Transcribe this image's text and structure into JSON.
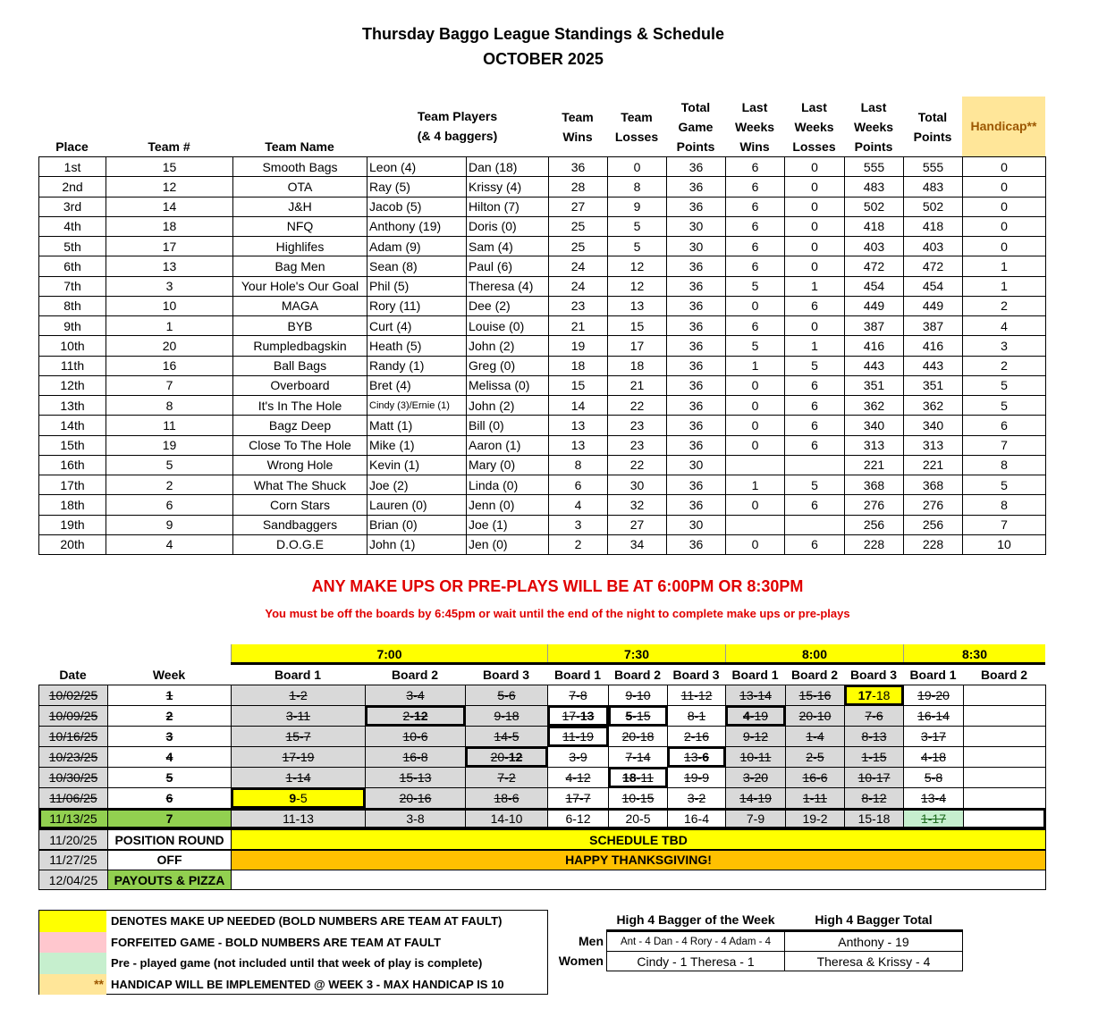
{
  "title": "Thursday Baggo League Standings & Schedule",
  "subtitle": "OCTOBER 2025",
  "colors": {
    "yellow": "#ffff00",
    "gray": "#d9d9d9",
    "green": "#92d050",
    "pre_played": "#c6efce",
    "handicap": "#ffe699",
    "orange": "#ffc000",
    "forfeit": "#ffc7ce",
    "red": "#e00000"
  },
  "standings": {
    "headers": [
      "Place",
      "Team #",
      "Team Name",
      "Team Players\n(& 4 baggers)",
      "Team\nWins",
      "Team\nLosses",
      "Total\nGame\nPoints",
      "Last\nWeeks\nWins",
      "Last\nWeeks\nLosses",
      "Last\nWeeks\nPoints",
      "Total\nPoints",
      "Handicap**"
    ],
    "rows": [
      [
        "1st",
        "15",
        "Smooth Bags",
        "Leon (4)",
        "Dan (18)",
        "36",
        "0",
        "36",
        "6",
        "0",
        "555",
        "555",
        "0"
      ],
      [
        "2nd",
        "12",
        "OTA",
        "Ray (5)",
        "Krissy (4)",
        "28",
        "8",
        "36",
        "6",
        "0",
        "483",
        "483",
        "0"
      ],
      [
        "3rd",
        "14",
        "J&H",
        "Jacob (5)",
        "Hilton (7)",
        "27",
        "9",
        "36",
        "6",
        "0",
        "502",
        "502",
        "0"
      ],
      [
        "4th",
        "18",
        "NFQ",
        "Anthony (19)",
        "Doris (0)",
        "25",
        "5",
        "30",
        "6",
        "0",
        "418",
        "418",
        "0"
      ],
      [
        "5th",
        "17",
        "Highlifes",
        "Adam (9)",
        "Sam (4)",
        "25",
        "5",
        "30",
        "6",
        "0",
        "403",
        "403",
        "0"
      ],
      [
        "6th",
        "13",
        "Bag Men",
        "Sean (8)",
        "Paul (6)",
        "24",
        "12",
        "36",
        "6",
        "0",
        "472",
        "472",
        "1"
      ],
      [
        "7th",
        "3",
        "Your Hole's Our Goal",
        "Phil (5)",
        "Theresa (4)",
        "24",
        "12",
        "36",
        "5",
        "1",
        "454",
        "454",
        "1"
      ],
      [
        "8th",
        "10",
        "MAGA",
        "Rory (11)",
        "Dee (2)",
        "23",
        "13",
        "36",
        "0",
        "6",
        "449",
        "449",
        "2"
      ],
      [
        "9th",
        "1",
        "BYB",
        "Curt (4)",
        "Louise (0)",
        "21",
        "15",
        "36",
        "6",
        "0",
        "387",
        "387",
        "4"
      ],
      [
        "10th",
        "20",
        "Rumpledbagskin",
        "Heath (5)",
        "John (2)",
        "19",
        "17",
        "36",
        "5",
        "1",
        "416",
        "416",
        "3"
      ],
      [
        "11th",
        "16",
        "Ball Bags",
        "Randy (1)",
        "Greg (0)",
        "18",
        "18",
        "36",
        "1",
        "5",
        "443",
        "443",
        "2"
      ],
      [
        "12th",
        "7",
        "Overboard",
        "Bret (4)",
        "Melissa (0)",
        "15",
        "21",
        "36",
        "0",
        "6",
        "351",
        "351",
        "5"
      ],
      [
        "13th",
        "8",
        "It's In The Hole",
        "Cindy (3)/Ernie (1)",
        "John (2)",
        "14",
        "22",
        "36",
        "0",
        "6",
        "362",
        "362",
        "5"
      ],
      [
        "14th",
        "11",
        "Bagz Deep",
        "Matt (1)",
        "Bill (0)",
        "13",
        "23",
        "36",
        "0",
        "6",
        "340",
        "340",
        "6"
      ],
      [
        "15th",
        "19",
        "Close To The Hole",
        "Mike (1)",
        "Aaron (1)",
        "13",
        "23",
        "36",
        "0",
        "6",
        "313",
        "313",
        "7"
      ],
      [
        "16th",
        "5",
        "Wrong Hole",
        "Kevin (1)",
        "Mary (0)",
        "8",
        "22",
        "30",
        "",
        "",
        "221",
        "221",
        "8"
      ],
      [
        "17th",
        "2",
        "What The Shuck",
        "Joe (2)",
        "Linda (0)",
        "6",
        "30",
        "36",
        "1",
        "5",
        "368",
        "368",
        "5"
      ],
      [
        "18th",
        "6",
        "Corn Stars",
        "Lauren (0)",
        "Jenn (0)",
        "4",
        "32",
        "36",
        "0",
        "6",
        "276",
        "276",
        "8"
      ],
      [
        "19th",
        "9",
        "Sandbaggers",
        "Brian (0)",
        "Joe (1)",
        "3",
        "27",
        "30",
        "",
        "",
        "256",
        "256",
        "7"
      ],
      [
        "20th",
        "4",
        "D.O.G.E",
        "John (1)",
        "Jen (0)",
        "2",
        "34",
        "36",
        "0",
        "6",
        "228",
        "228",
        "10"
      ]
    ]
  },
  "notice": {
    "main": "ANY MAKE UPS OR PRE-PLAYS WILL BE AT 6:00PM OR 8:30PM",
    "sub": "You must be off the boards by 6:45pm or wait until the end of the night to complete make ups or pre-plays"
  },
  "schedule": {
    "date_header": "Date",
    "week_header": "Week",
    "times": [
      "7:00",
      "7:30",
      "8:00",
      "8:30"
    ],
    "boards": [
      "Board 1",
      "Board 2",
      "Board 3",
      "Board 1",
      "Board 2",
      "Board 3",
      "Board 1",
      "Board 2",
      "Board 3",
      "Board 1",
      "Board 2"
    ],
    "weeks": [
      {
        "date": "10/02/25",
        "week": "1",
        "struck": true,
        "matches": [
          {
            "t1": "1",
            "t2": "2"
          },
          {
            "t1": "3",
            "t2": "4"
          },
          {
            "t1": "5",
            "t2": "6"
          },
          {
            "t1": "7",
            "t2": "8"
          },
          {
            "t1": "9",
            "t2": "10"
          },
          {
            "t1": "11",
            "t2": "12"
          },
          {
            "t1": "13",
            "t2": "14"
          },
          {
            "t1": "15",
            "t2": "16"
          },
          {
            "t1": "17",
            "t2": "18",
            "status": "makeup",
            "fault": "t1",
            "outline": true
          },
          {
            "t1": "19",
            "t2": "20"
          },
          null
        ]
      },
      {
        "date": "10/09/25",
        "week": "2",
        "struck": true,
        "matches": [
          {
            "t1": "3",
            "t2": "11"
          },
          {
            "t1": "2",
            "t2": "12",
            "fault": "t2",
            "outline": true
          },
          {
            "t1": "9",
            "t2": "18"
          },
          {
            "t1": "17",
            "t2": "13",
            "fault": "t2",
            "outline": true
          },
          {
            "t1": "5",
            "t2": "15",
            "fault": "t1",
            "outline": true
          },
          {
            "t1": "8",
            "t2": "1"
          },
          {
            "t1": "4",
            "t2": "19",
            "fault": "t1",
            "outline": true
          },
          {
            "t1": "20",
            "t2": "10"
          },
          {
            "t1": "7",
            "t2": "6"
          },
          {
            "t1": "16",
            "t2": "14"
          },
          null
        ]
      },
      {
        "date": "10/16/25",
        "week": "3",
        "struck": true,
        "matches": [
          {
            "t1": "15",
            "t2": "7"
          },
          {
            "t1": "10",
            "t2": "6"
          },
          {
            "t1": "14",
            "t2": "5"
          },
          {
            "t1": "11",
            "t2": "19",
            "outline": true
          },
          {
            "t1": "20",
            "t2": "18"
          },
          {
            "t1": "2",
            "t2": "16"
          },
          {
            "t1": "9",
            "t2": "12"
          },
          {
            "t1": "1",
            "t2": "4"
          },
          {
            "t1": "8",
            "t2": "13"
          },
          {
            "t1": "3",
            "t2": "17"
          },
          null
        ]
      },
      {
        "date": "10/23/25",
        "week": "4",
        "struck": true,
        "matches": [
          {
            "t1": "17",
            "t2": "19"
          },
          {
            "t1": "16",
            "t2": "8"
          },
          {
            "t1": "20",
            "t2": "12",
            "fault": "t2",
            "outline": true
          },
          {
            "t1": "3",
            "t2": "9"
          },
          {
            "t1": "7",
            "t2": "14"
          },
          {
            "t1": "13",
            "t2": "6",
            "fault": "t2",
            "outline": true
          },
          {
            "t1": "10",
            "t2": "11"
          },
          {
            "t1": "2",
            "t2": "5"
          },
          {
            "t1": "1",
            "t2": "15"
          },
          {
            "t1": "4",
            "t2": "18"
          },
          null
        ]
      },
      {
        "date": "10/30/25",
        "week": "5",
        "struck": true,
        "matches": [
          {
            "t1": "1",
            "t2": "14"
          },
          {
            "t1": "15",
            "t2": "13"
          },
          {
            "t1": "7",
            "t2": "2"
          },
          {
            "t1": "4",
            "t2": "12"
          },
          {
            "t1": "18",
            "t2": "11",
            "fault": "t1",
            "outline": true
          },
          {
            "t1": "19",
            "t2": "9"
          },
          {
            "t1": "3",
            "t2": "20"
          },
          {
            "t1": "16",
            "t2": "6"
          },
          {
            "t1": "10",
            "t2": "17"
          },
          {
            "t1": "5",
            "t2": "8"
          },
          null
        ]
      },
      {
        "date": "11/06/25",
        "week": "6",
        "struck": true,
        "matches": [
          {
            "t1": "9",
            "t2": "5",
            "status": "makeup",
            "fault": "t1",
            "outline": true
          },
          {
            "t1": "20",
            "t2": "16"
          },
          {
            "t1": "18",
            "t2": "6"
          },
          {
            "t1": "17",
            "t2": "7"
          },
          {
            "t1": "10",
            "t2": "15"
          },
          {
            "t1": "3",
            "t2": "2"
          },
          {
            "t1": "14",
            "t2": "19"
          },
          {
            "t1": "1",
            "t2": "11"
          },
          {
            "t1": "8",
            "t2": "12"
          },
          {
            "t1": "13",
            "t2": "4"
          },
          null
        ]
      },
      {
        "date": "11/13/25",
        "week": "7",
        "struck": false,
        "current": true,
        "matches": [
          {
            "t1": "11",
            "t2": "13"
          },
          {
            "t1": "3",
            "t2": "8"
          },
          {
            "t1": "14",
            "t2": "10"
          },
          {
            "t1": "6",
            "t2": "12"
          },
          {
            "t1": "20",
            "t2": "5"
          },
          {
            "t1": "16",
            "t2": "4"
          },
          {
            "t1": "7",
            "t2": "9"
          },
          {
            "t1": "19",
            "t2": "2"
          },
          {
            "t1": "15",
            "t2": "18"
          },
          {
            "t1": "1",
            "t2": "17",
            "status": "preplayed"
          },
          null
        ]
      }
    ],
    "special": [
      {
        "date": "11/20/25",
        "label": "POSITION ROUND",
        "banner": "SCHEDULE TBD",
        "banner_color": "yellow"
      },
      {
        "date": "11/27/25",
        "label": "OFF",
        "banner": "HAPPY THANKSGIVING!",
        "banner_color": "orange"
      },
      {
        "date": "12/04/25",
        "label": "PAYOUTS & PIZZA",
        "banner": "",
        "banner_color": "white",
        "label_color": "green"
      }
    ]
  },
  "legend": [
    {
      "swatch": "yellow",
      "mark": "",
      "text": "DENOTES MAKE UP NEEDED (BOLD NUMBERS ARE TEAM AT FAULT)"
    },
    {
      "swatch": "forfeit",
      "mark": "",
      "text": "FORFEITED GAME - BOLD NUMBERS ARE TEAM AT FAULT"
    },
    {
      "swatch": "pre_played",
      "mark": "",
      "text": "Pre - played game (not included until that week of play is complete)"
    },
    {
      "swatch": "handicap",
      "mark": "**",
      "text": "HANDICAP WILL BE IMPLEMENTED @ WEEK 3 - MAX HANDICAP IS 10"
    }
  ],
  "high_baggers": {
    "week_header": "High 4 Bagger of the Week",
    "total_header": "High 4 Bagger Total",
    "rows": [
      {
        "label": "Men",
        "week": "Ant - 4  Dan - 4  Rory - 4  Adam - 4",
        "total": "Anthony - 19"
      },
      {
        "label": "Women",
        "week": "Cindy - 1   Theresa - 1",
        "total": "Theresa & Krissy - 4"
      }
    ]
  }
}
